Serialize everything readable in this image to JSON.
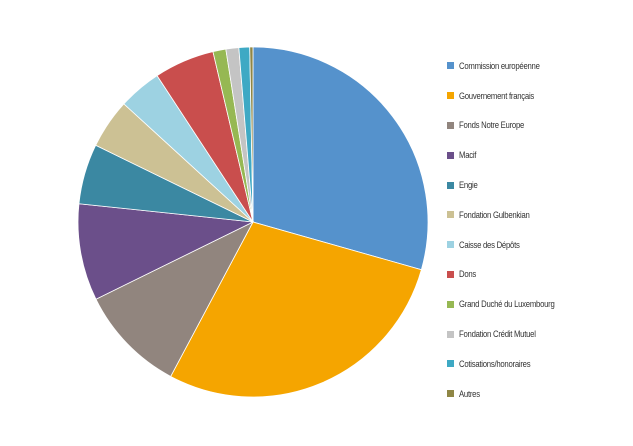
{
  "chart_data": {
    "type": "pie",
    "start_angle_deg": 0,
    "direction": "clockwise",
    "legend_position": "right",
    "slices": [
      {
        "label": "Commission européenne",
        "value": 29.6,
        "color": "#5592cc"
      },
      {
        "label": "Gouvernement français",
        "value": 28.6,
        "color": "#f5a500"
      },
      {
        "label": "Fonds Notre Europe",
        "value": 10.0,
        "color": "#91857e"
      },
      {
        "label": "Macif",
        "value": 9.0,
        "color": "#6b4f8a"
      },
      {
        "label": "Engie",
        "value": 5.6,
        "color": "#3b88a2"
      },
      {
        "label": "Fondation Gulbenkian",
        "value": 4.6,
        "color": "#ccc194"
      },
      {
        "label": "Caisse des Dépôts",
        "value": 4.0,
        "color": "#9dd2e2"
      },
      {
        "label": "Dons",
        "value": 5.6,
        "color": "#c94e4d"
      },
      {
        "label": "Grand Duché du Luxembourg",
        "value": 1.2,
        "color": "#96b853"
      },
      {
        "label": "Fondation Crédit Mutuel",
        "value": 1.2,
        "color": "#c4c4c4"
      },
      {
        "label": "Cotisations/honoraires",
        "value": 1.0,
        "color": "#3ea9c4"
      },
      {
        "label": "Autres",
        "value": 0.3,
        "color": "#8f8645"
      }
    ]
  }
}
